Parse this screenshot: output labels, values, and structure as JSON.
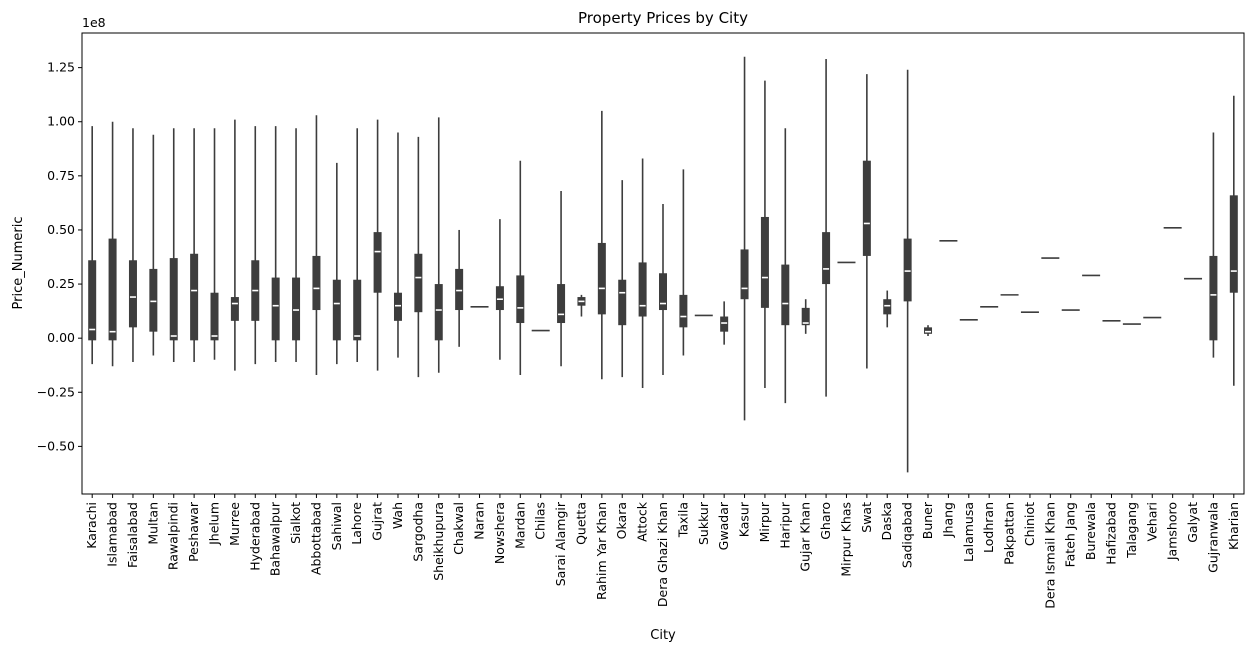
{
  "chart_data": {
    "type": "violin",
    "title": "Property Prices by City",
    "xlabel": "City",
    "ylabel": "Price_Numeric",
    "y_multiplier_label": "1e8",
    "ylim": [
      -0.72,
      1.41
    ],
    "yticks": [
      -0.5,
      -0.25,
      0.0,
      0.25,
      0.5,
      0.75,
      1.0,
      1.25
    ],
    "ytick_labels": [
      "−0.50",
      "−0.25",
      "0.00",
      "0.25",
      "0.50",
      "0.75",
      "1.00",
      "1.25"
    ],
    "grid": false,
    "color": "#3d3d3d",
    "categories": [
      "Karachi",
      "Islamabad",
      "Faisalabad",
      "Multan",
      "Rawalpindi",
      "Peshawar",
      "Jhelum",
      "Murree",
      "Hyderabad",
      "Bahawalpur",
      "Sialkot",
      "Abbottabad",
      "Sahiwal",
      "Lahore",
      "Gujrat",
      "Wah",
      "Sargodha",
      "Sheikhupura",
      "Chakwal",
      "Naran",
      "Nowshera",
      "Mardan",
      "Chilas",
      "Sarai Alamgir",
      "Quetta",
      "Rahim Yar Khan",
      "Okara",
      "Attock",
      "Dera Ghazi Khan",
      "Taxila",
      "Sukkur",
      "Gwadar",
      "Kasur",
      "Mirpur",
      "Haripur",
      "Gujar Khan",
      "Gharo",
      "Mirpur Khas",
      "Swat",
      "Daska",
      "Sadiqabad",
      "Buner",
      "Jhang",
      "Lalamusa",
      "Lodhran",
      "Pakpattan",
      "Chiniot",
      "Dera Ismail Khan",
      "Fateh Jang",
      "Burewala",
      "Hafizabad",
      "Talagang",
      "Vehari",
      "Jamshoro",
      "Galyat",
      "Gujranwala",
      "Kharian"
    ],
    "series": [
      {
        "min": [
          -0.12,
          -0.13,
          -0.11,
          -0.08,
          -0.11,
          -0.11,
          -0.1,
          -0.15,
          -0.12,
          -0.11,
          -0.11,
          -0.17,
          -0.12,
          -0.11,
          -0.15,
          -0.09,
          -0.18,
          -0.16,
          -0.04,
          0.145,
          -0.1,
          -0.17,
          0.035,
          -0.13,
          0.1,
          -0.19,
          -0.18,
          -0.23,
          -0.17,
          -0.08,
          0.105,
          -0.03,
          -0.38,
          -0.23,
          -0.3,
          0.02,
          -0.27,
          0.35,
          -0.14,
          0.05,
          -0.62,
          0.01,
          0.45,
          0.085,
          0.145,
          0.2,
          0.12,
          0.37,
          0.13,
          0.29,
          0.08,
          0.065,
          0.095,
          0.51,
          0.275,
          -0.09,
          -0.22
        ],
        "q1": [
          -0.01,
          -0.01,
          0.05,
          0.03,
          -0.01,
          -0.01,
          -0.01,
          0.08,
          0.08,
          -0.01,
          -0.01,
          0.13,
          -0.01,
          -0.01,
          0.21,
          0.08,
          0.12,
          -0.01,
          0.13,
          0.145,
          0.13,
          0.07,
          0.035,
          0.07,
          0.15,
          0.11,
          0.06,
          0.1,
          0.13,
          0.05,
          0.105,
          0.03,
          0.18,
          0.14,
          0.06,
          0.06,
          0.25,
          0.35,
          0.38,
          0.11,
          0.17,
          0.02,
          0.45,
          0.085,
          0.145,
          0.2,
          0.12,
          0.37,
          0.13,
          0.29,
          0.08,
          0.065,
          0.095,
          0.51,
          0.275,
          -0.01,
          0.21
        ],
        "median": [
          0.04,
          0.03,
          0.19,
          0.17,
          0.01,
          0.22,
          0.01,
          0.16,
          0.22,
          0.15,
          0.13,
          0.23,
          0.16,
          0.01,
          0.4,
          0.15,
          0.28,
          0.13,
          0.22,
          0.145,
          0.18,
          0.14,
          0.035,
          0.11,
          0.17,
          0.23,
          0.21,
          0.15,
          0.16,
          0.1,
          0.105,
          0.07,
          0.23,
          0.28,
          0.16,
          0.07,
          0.32,
          0.35,
          0.53,
          0.15,
          0.31,
          0.03,
          0.45,
          0.085,
          0.145,
          0.2,
          0.12,
          0.37,
          0.13,
          0.29,
          0.08,
          0.065,
          0.095,
          0.51,
          0.275,
          0.2,
          0.31
        ],
        "q3": [
          0.36,
          0.46,
          0.36,
          0.32,
          0.37,
          0.39,
          0.21,
          0.19,
          0.36,
          0.28,
          0.28,
          0.38,
          0.27,
          0.27,
          0.49,
          0.21,
          0.39,
          0.25,
          0.32,
          0.145,
          0.24,
          0.29,
          0.035,
          0.25,
          0.19,
          0.44,
          0.27,
          0.35,
          0.3,
          0.2,
          0.105,
          0.1,
          0.41,
          0.56,
          0.34,
          0.14,
          0.49,
          0.35,
          0.82,
          0.18,
          0.46,
          0.05,
          0.45,
          0.085,
          0.145,
          0.2,
          0.12,
          0.37,
          0.13,
          0.29,
          0.08,
          0.065,
          0.095,
          0.51,
          0.275,
          0.38,
          0.66
        ],
        "max": [
          0.98,
          1.0,
          0.97,
          0.94,
          0.97,
          0.97,
          0.97,
          1.01,
          0.98,
          0.98,
          0.97,
          1.03,
          0.81,
          0.97,
          1.01,
          0.95,
          0.93,
          1.02,
          0.5,
          0.145,
          0.55,
          0.82,
          0.035,
          0.68,
          0.2,
          1.05,
          0.73,
          0.83,
          0.62,
          0.78,
          0.105,
          0.17,
          1.3,
          1.19,
          0.97,
          0.18,
          1.29,
          0.35,
          1.22,
          0.22,
          1.24,
          0.06,
          0.45,
          0.085,
          0.145,
          0.2,
          0.12,
          0.37,
          0.13,
          0.29,
          0.08,
          0.065,
          0.095,
          0.51,
          0.275,
          0.95,
          1.12
        ]
      }
    ]
  }
}
